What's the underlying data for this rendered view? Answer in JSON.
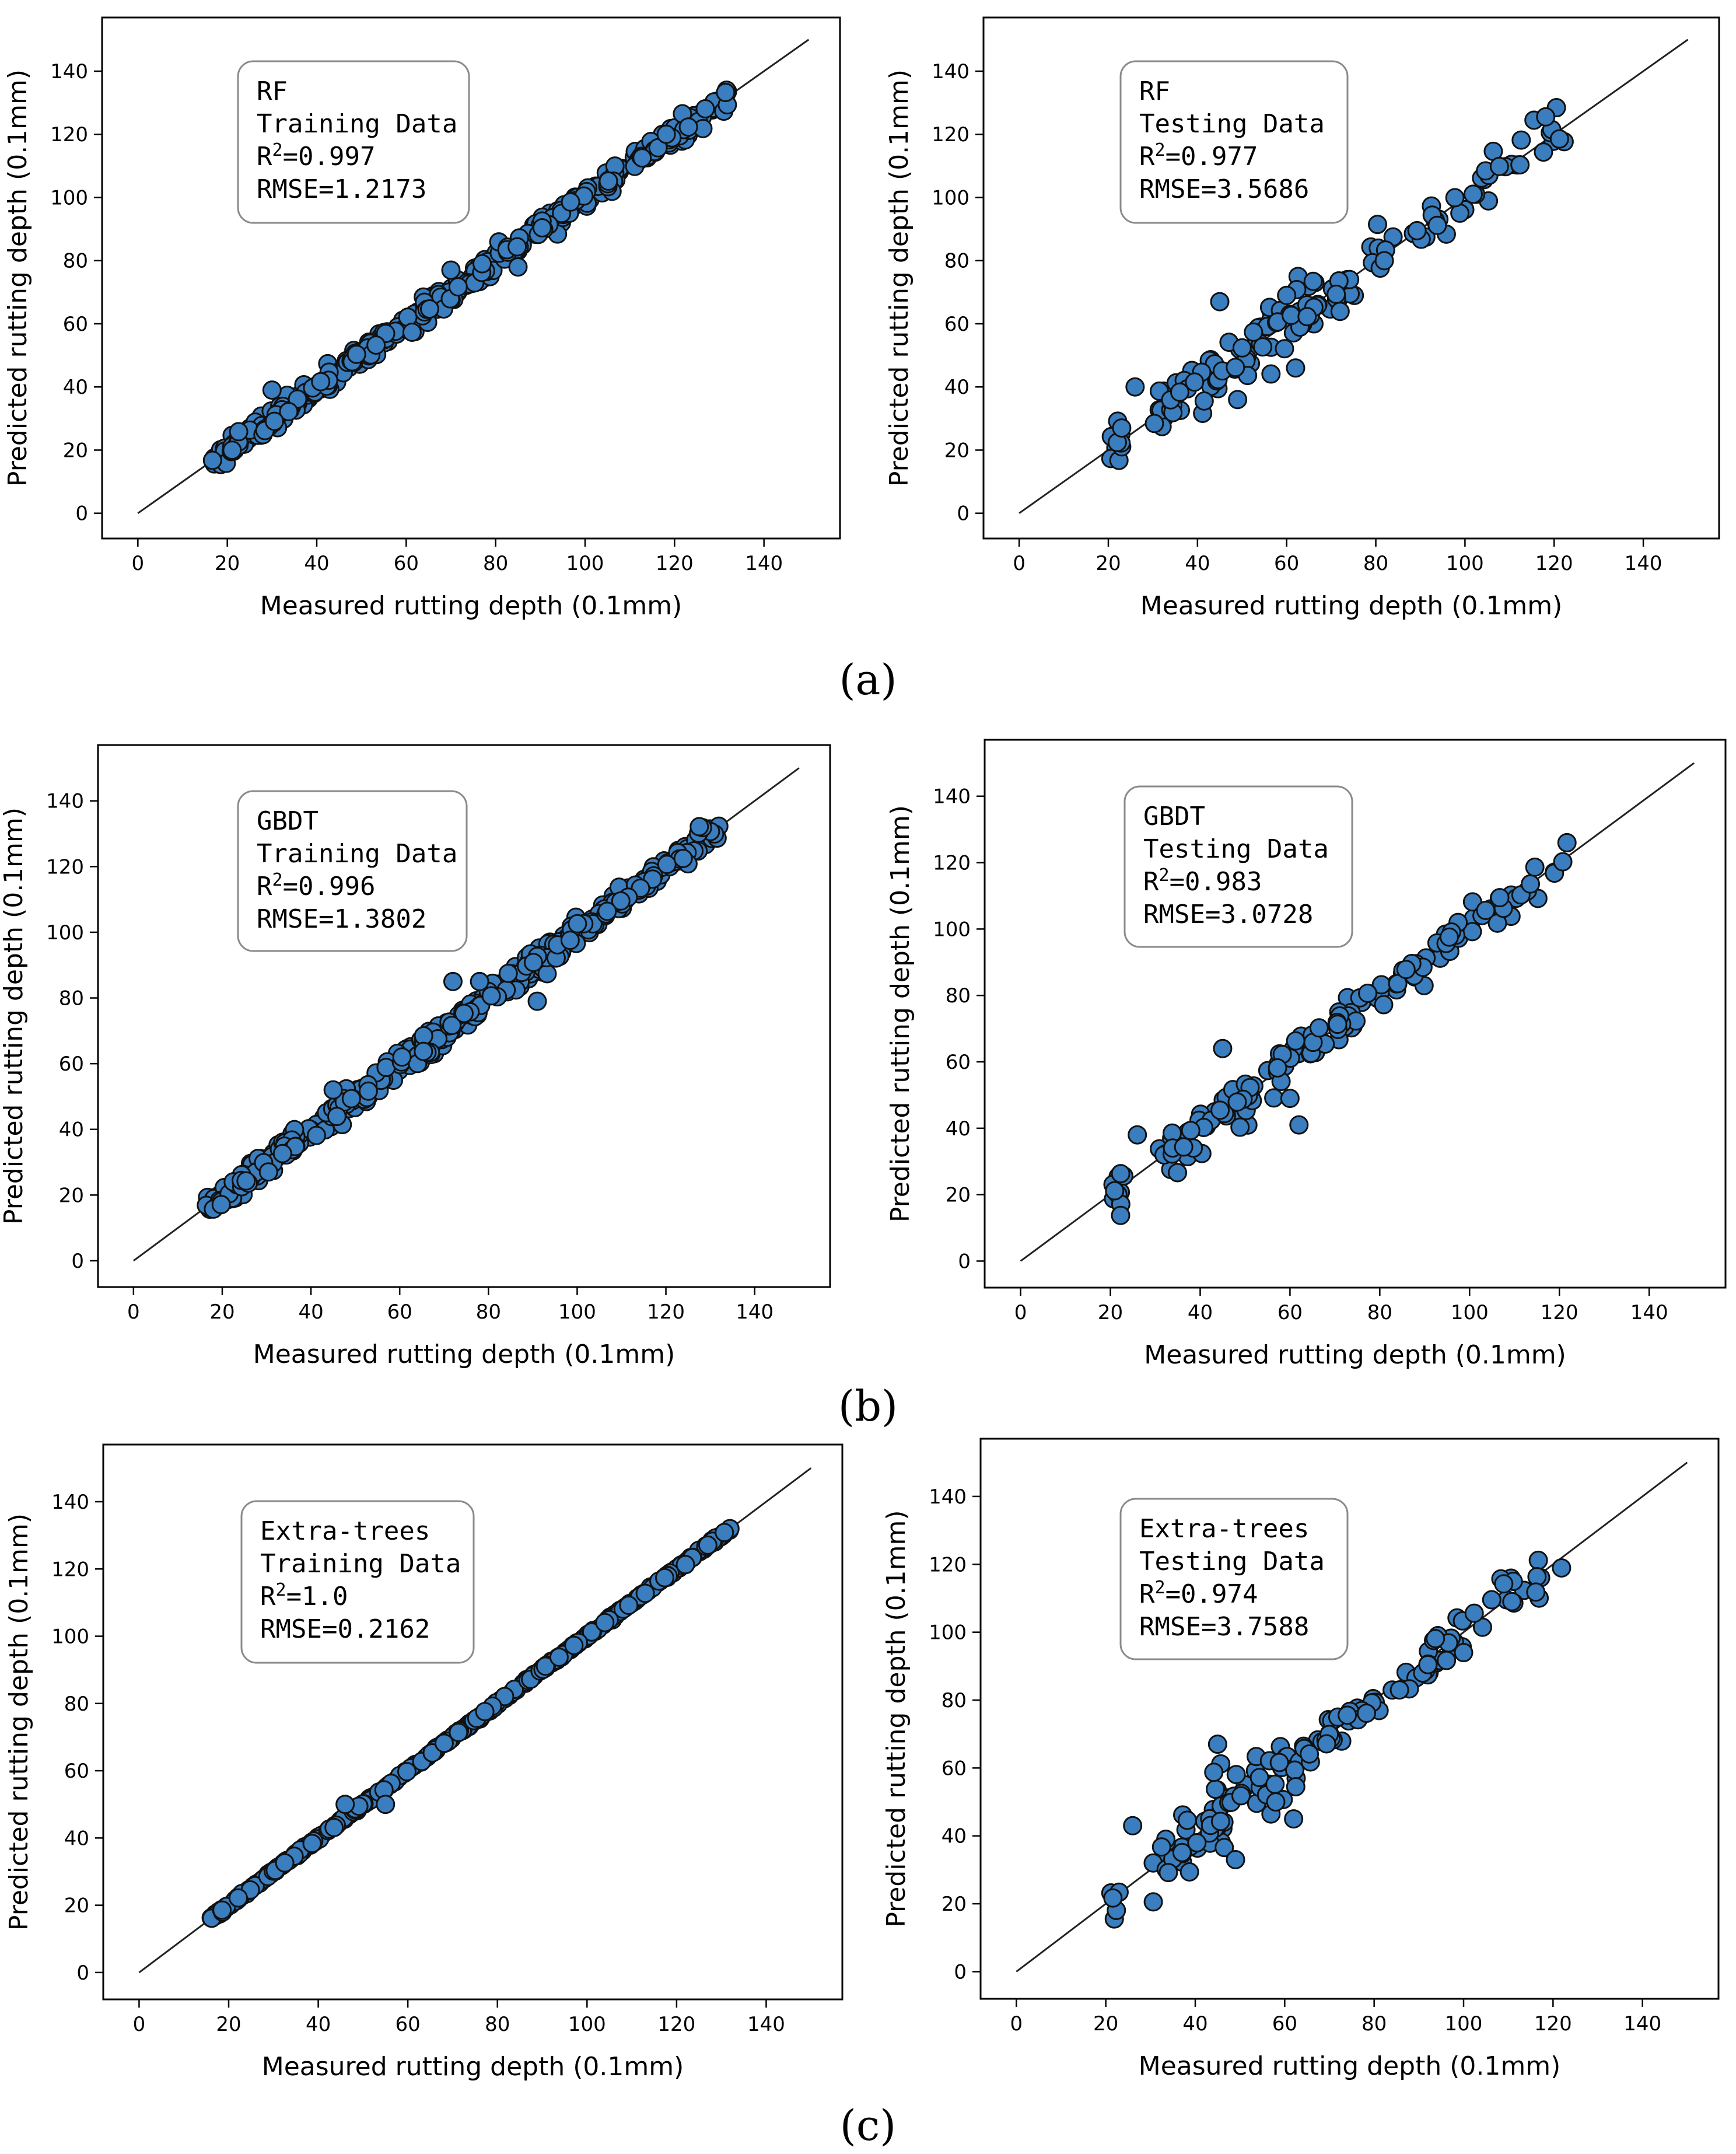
{
  "panel_labels": [
    "(a)",
    "(b)",
    "(c)"
  ],
  "chart_data": [
    {
      "type": "scatter",
      "model": "RF",
      "dataset": "Training Data",
      "r2_label": "=0.997",
      "rmse_label": "RMSE=1.2173",
      "xlabel": "Measured rutting depth (0.1mm)",
      "ylabel": "Predicted rutting depth (0.1mm)",
      "xlim": [
        -8,
        157
      ],
      "ylim": [
        -8,
        157
      ],
      "xticks": [
        0,
        20,
        40,
        60,
        80,
        100,
        120,
        140
      ],
      "yticks": [
        0,
        20,
        40,
        60,
        80,
        100,
        120,
        140
      ],
      "reference_line": [
        [
          0,
          0
        ],
        [
          150,
          150
        ]
      ],
      "spread": 1.8,
      "outliers": [
        [
          85,
          78
        ],
        [
          70,
          77
        ],
        [
          30,
          39
        ]
      ],
      "n_points": 420,
      "seed": 11
    },
    {
      "type": "scatter",
      "model": "RF",
      "dataset": "Testing Data",
      "r2_label": "=0.977",
      "rmse_label": "RMSE=3.5686",
      "xlabel": "Measured rutting depth (0.1mm)",
      "ylabel": "Predicted rutting depth (0.1mm)",
      "xlim": [
        -8,
        157
      ],
      "ylim": [
        -8,
        157
      ],
      "xticks": [
        0,
        20,
        40,
        60,
        80,
        100,
        120,
        140
      ],
      "yticks": [
        0,
        20,
        40,
        60,
        80,
        100,
        120,
        140
      ],
      "reference_line": [
        [
          0,
          0
        ],
        [
          150,
          150
        ]
      ],
      "spread": 3.6,
      "outliers": [
        [
          45,
          67
        ],
        [
          62,
          46
        ],
        [
          49,
          36
        ],
        [
          26,
          40
        ],
        [
          60,
          69
        ],
        [
          23,
          27
        ]
      ],
      "n_points": 150,
      "seed": 23
    },
    {
      "type": "scatter",
      "model": "GBDT",
      "dataset": "Training Data",
      "r2_label": "=0.996",
      "rmse_label": "RMSE=1.3802",
      "xlabel": "Measured rutting depth (0.1mm)",
      "ylabel": "Predicted rutting depth (0.1mm)",
      "xlim": [
        -8,
        157
      ],
      "ylim": [
        -8,
        157
      ],
      "xticks": [
        0,
        20,
        40,
        60,
        80,
        100,
        120,
        140
      ],
      "yticks": [
        0,
        20,
        40,
        60,
        80,
        100,
        120,
        140
      ],
      "reference_line": [
        [
          0,
          0
        ],
        [
          150,
          150
        ]
      ],
      "spread": 2.0,
      "outliers": [
        [
          72,
          85
        ],
        [
          91,
          79
        ],
        [
          78,
          85
        ],
        [
          45,
          52
        ]
      ],
      "n_points": 420,
      "seed": 37
    },
    {
      "type": "scatter",
      "model": "GBDT",
      "dataset": "Testing Data",
      "r2_label": "=0.983",
      "rmse_label": "RMSE=3.0728",
      "xlabel": "Measured rutting depth (0.1mm)",
      "ylabel": "Predicted rutting depth (0.1mm)",
      "xlim": [
        -8,
        157
      ],
      "ylim": [
        -8,
        157
      ],
      "xticks": [
        0,
        20,
        40,
        60,
        80,
        100,
        120,
        140
      ],
      "yticks": [
        0,
        20,
        40,
        60,
        80,
        100,
        120,
        140
      ],
      "reference_line": [
        [
          0,
          0
        ],
        [
          150,
          150
        ]
      ],
      "spread": 3.0,
      "outliers": [
        [
          45,
          64
        ],
        [
          62,
          41
        ],
        [
          26,
          38
        ],
        [
          60,
          49
        ]
      ],
      "n_points": 150,
      "seed": 53
    },
    {
      "type": "scatter",
      "model": "Extra-trees",
      "dataset": "Training Data",
      "r2_label": "=1.0",
      "rmse_label": "RMSE=0.2162",
      "xlabel": "Measured rutting depth (0.1mm)",
      "ylabel": "Predicted rutting depth (0.1mm)",
      "xlim": [
        -8,
        157
      ],
      "ylim": [
        -8,
        157
      ],
      "xticks": [
        0,
        20,
        40,
        60,
        80,
        100,
        120,
        140
      ],
      "yticks": [
        0,
        20,
        40,
        60,
        80,
        100,
        120,
        140
      ],
      "reference_line": [
        [
          0,
          0
        ],
        [
          150,
          150
        ]
      ],
      "spread": 0.25,
      "outliers": [
        [
          46,
          50
        ],
        [
          55,
          50
        ]
      ],
      "n_points": 420,
      "seed": 71
    },
    {
      "type": "scatter",
      "model": "Extra-trees",
      "dataset": "Testing Data",
      "r2_label": "=0.974",
      "rmse_label": "RMSE=3.7588",
      "xlabel": "Measured rutting depth (0.1mm)",
      "ylabel": "Predicted rutting depth (0.1mm)",
      "xlim": [
        -8,
        157
      ],
      "ylim": [
        -8,
        157
      ],
      "xticks": [
        0,
        20,
        40,
        60,
        80,
        100,
        120,
        140
      ],
      "yticks": [
        0,
        20,
        40,
        60,
        80,
        100,
        120,
        140
      ],
      "reference_line": [
        [
          0,
          0
        ],
        [
          150,
          150
        ]
      ],
      "spread": 3.8,
      "outliers": [
        [
          45,
          67
        ],
        [
          26,
          43
        ],
        [
          49,
          33
        ],
        [
          62,
          45
        ],
        [
          100,
          94
        ],
        [
          58,
          50
        ]
      ],
      "n_points": 150,
      "seed": 89
    }
  ]
}
